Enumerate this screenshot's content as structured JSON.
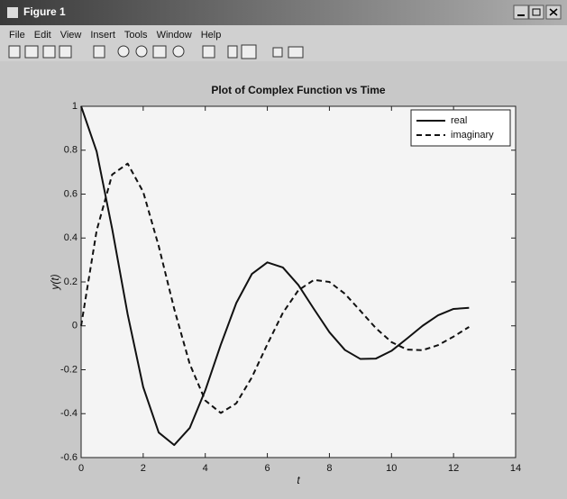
{
  "window": {
    "title": "Figure 1",
    "menu": [
      "File",
      "Edit",
      "View",
      "Insert",
      "Tools",
      "Window",
      "Help"
    ]
  },
  "chart_data": {
    "type": "line",
    "title": "Plot of Complex Function vs Time",
    "xlabel": "t",
    "ylabel": "y(t)",
    "x": [
      0,
      0.5,
      1,
      1.5,
      2,
      2.5,
      3,
      3.5,
      4,
      4.5,
      5,
      5.5,
      6,
      6.5,
      7,
      7.5,
      8,
      8.5,
      9,
      9.5,
      10,
      10.5,
      11,
      11.5,
      12,
      12.5
    ],
    "series": [
      {
        "name": "real",
        "color": "#111111",
        "linestyle": "solid",
        "values": [
          1,
          0.794,
          0.442,
          0.052,
          -0.279,
          -0.486,
          -0.543,
          -0.465,
          -0.294,
          -0.086,
          0.104,
          0.236,
          0.289,
          0.266,
          0.186,
          0.077,
          -0.029,
          -0.11,
          -0.151,
          -0.149,
          -0.114,
          -0.058,
          0,
          0.048,
          0.077,
          0.082
        ]
      },
      {
        "name": "imaginary",
        "color": "#111111",
        "linestyle": "dashed",
        "values": [
          0,
          0.434,
          0.689,
          0.739,
          0.61,
          0.363,
          0.077,
          -0.174,
          -0.34,
          -0.397,
          -0.353,
          -0.235,
          -0.084,
          0.059,
          0.162,
          0.209,
          0.2,
          0.146,
          0.068,
          -0.011,
          -0.074,
          -0.108,
          -0.111,
          -0.088,
          -0.049,
          -0.005
        ]
      }
    ],
    "xlim": [
      0,
      14
    ],
    "xticks": [
      0,
      2,
      4,
      6,
      8,
      10,
      12,
      14
    ],
    "ylim": [
      -0.6,
      1
    ],
    "yticks": [
      -0.6,
      -0.4,
      -0.2,
      0,
      0.2,
      0.4,
      0.6,
      0.8,
      1
    ],
    "legend": "upper-right"
  }
}
